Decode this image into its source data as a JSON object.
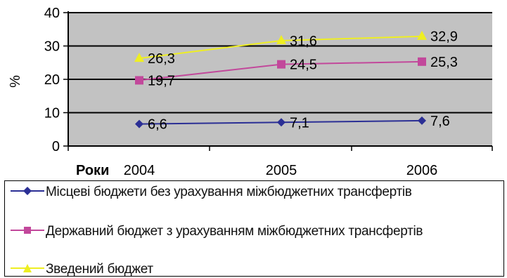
{
  "chart_data": {
    "type": "line",
    "ylabel": "%",
    "xlabel": "Роки",
    "categories": [
      "2004",
      "2005",
      "2006"
    ],
    "ylim": [
      0,
      40
    ],
    "yticks": [
      0,
      10,
      20,
      30,
      40
    ],
    "grid": true,
    "legend_position": "bottom",
    "series": [
      {
        "name": "Місцеві бюджети без урахування міжбюджетних трансфертів",
        "values": [
          6.6,
          7.1,
          7.6
        ],
        "labels": [
          "6,6",
          "7,1",
          "7,6"
        ],
        "color": "#2b2f95",
        "marker": "diamond"
      },
      {
        "name": "Державний бюджет з урахуванням міжбюджетних трансфертів",
        "values": [
          19.7,
          24.5,
          25.3
        ],
        "labels": [
          "19,7",
          "24,5",
          "25,3"
        ],
        "color": "#c2489b",
        "marker": "square"
      },
      {
        "name": "Зведений бюджет",
        "values": [
          26.3,
          31.6,
          32.9
        ],
        "labels": [
          "26,3",
          "31,6",
          "32,9"
        ],
        "color": "#eeee22",
        "marker": "triangle"
      }
    ]
  }
}
